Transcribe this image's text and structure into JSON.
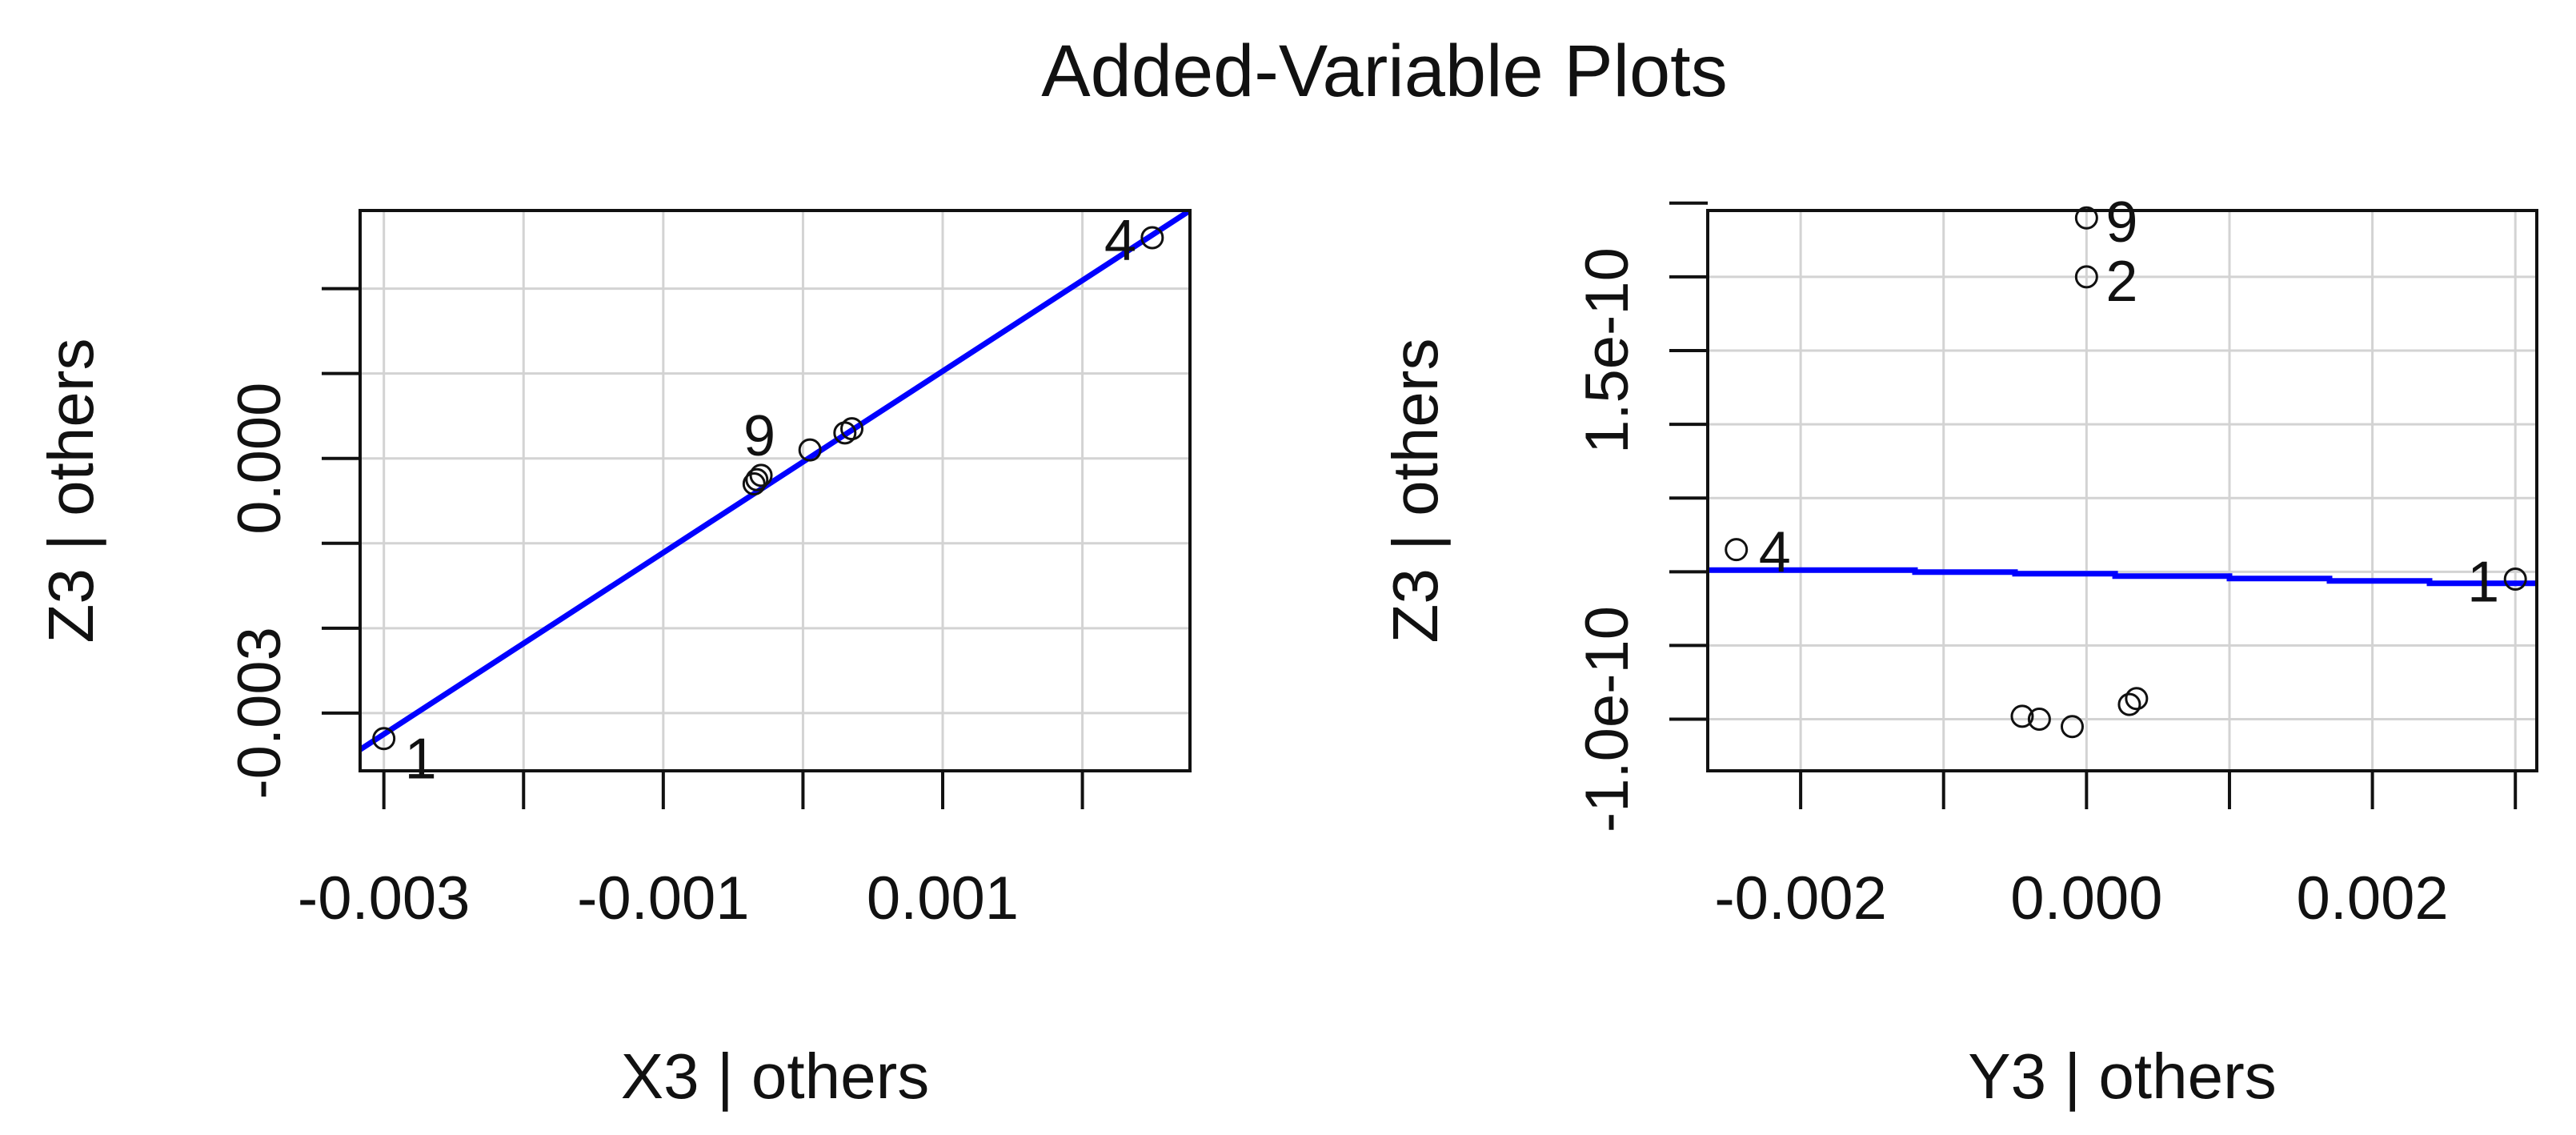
{
  "title": "Added-Variable Plots",
  "colors": {
    "fit_line": "#0000ff",
    "grid": "#d3d3d3",
    "points": "#111111",
    "frame": "#111111"
  },
  "chart_data": [
    {
      "type": "scatter",
      "xlabel": "X3 | others",
      "ylabel": "Z3  | others",
      "xlim": [
        -0.00317,
        0.00277
      ],
      "ylim": [
        -0.00368,
        0.00292
      ],
      "x_ticks": [
        -0.003,
        -0.002,
        -0.001,
        0.0,
        0.001,
        0.002
      ],
      "x_tick_labels": [
        "-0.003",
        "",
        "-0.001",
        "",
        "0.001",
        ""
      ],
      "y_ticks": [
        -0.003,
        -0.002,
        -0.001,
        0.0,
        0.001,
        0.002
      ],
      "y_tick_labels": [
        "-0.003",
        "",
        "",
        "0.000",
        "",
        ""
      ],
      "grid": true,
      "points": [
        {
          "x": -0.003,
          "y": -0.0033,
          "label": "1"
        },
        {
          "x": -0.00035,
          "y": -0.0003,
          "label": ""
        },
        {
          "x": -0.00033,
          "y": -0.00025,
          "label": ""
        },
        {
          "x": -0.0003,
          "y": -0.0002,
          "label": "9"
        },
        {
          "x": 5e-05,
          "y": 0.0001,
          "label": ""
        },
        {
          "x": 0.0003,
          "y": 0.0003,
          "label": ""
        },
        {
          "x": 0.00035,
          "y": 0.00035,
          "label": ""
        },
        {
          "x": 0.0025,
          "y": 0.0026,
          "label": "4"
        }
      ],
      "fit_line": {
        "x": [
          -0.00317,
          0.00277
        ],
        "y": [
          -0.00343,
          0.00292
        ]
      }
    },
    {
      "type": "scatter",
      "xlabel": "Y3 | others",
      "ylabel": "Z3  | others",
      "xlim": [
        -0.00265,
        0.00315
      ],
      "ylim": [
        -1.35e-10,
        2.45e-10
      ],
      "x_ticks": [
        -0.002,
        -0.001,
        0.0,
        0.001,
        0.002,
        0.003
      ],
      "x_tick_labels": [
        "-0.002",
        "",
        "0.000",
        "",
        "0.002",
        ""
      ],
      "y_ticks": [
        -1e-10,
        -5e-11,
        0.0,
        5e-11,
        1e-10,
        1.5e-10,
        2e-10,
        2.5e-10
      ],
      "y_tick_labels": [
        "-1.0e-10",
        "",
        "",
        "",
        "",
        "1.5e-10",
        "",
        ""
      ],
      "grid": true,
      "points": [
        {
          "x": -0.00245,
          "y": 1.5e-11,
          "label": "4"
        },
        {
          "x": 0.003,
          "y": -5e-12,
          "label": "1"
        },
        {
          "x": 0.0,
          "y": 2.4e-10,
          "label": "9"
        },
        {
          "x": 0.0,
          "y": 2e-10,
          "label": "2"
        },
        {
          "x": -0.00045,
          "y": -9.8e-11,
          "label": ""
        },
        {
          "x": -0.00033,
          "y": -1e-10,
          "label": ""
        },
        {
          "x": -0.0001,
          "y": -1.05e-10,
          "label": ""
        },
        {
          "x": 0.0003,
          "y": -9e-11,
          "label": ""
        },
        {
          "x": 0.00035,
          "y": -8.6e-11,
          "label": ""
        }
      ],
      "fit_line": {
        "x": [
          -0.00265,
          -0.0012,
          -0.0012,
          -0.0005,
          -0.0005,
          0.0002,
          0.0002,
          0.001,
          0.001,
          0.0017,
          0.0017,
          0.0024,
          0.0024,
          0.00315
        ],
        "y": [
          1.1e-12,
          1.1e-12,
          -2e-13,
          -2e-13,
          -1.3e-12,
          -1.3e-12,
          -3e-12,
          -3e-12,
          -4.6e-12,
          -4.6e-12,
          -6.2e-12,
          -6.2e-12,
          -7.8e-12,
          -7.8e-12
        ]
      }
    }
  ]
}
